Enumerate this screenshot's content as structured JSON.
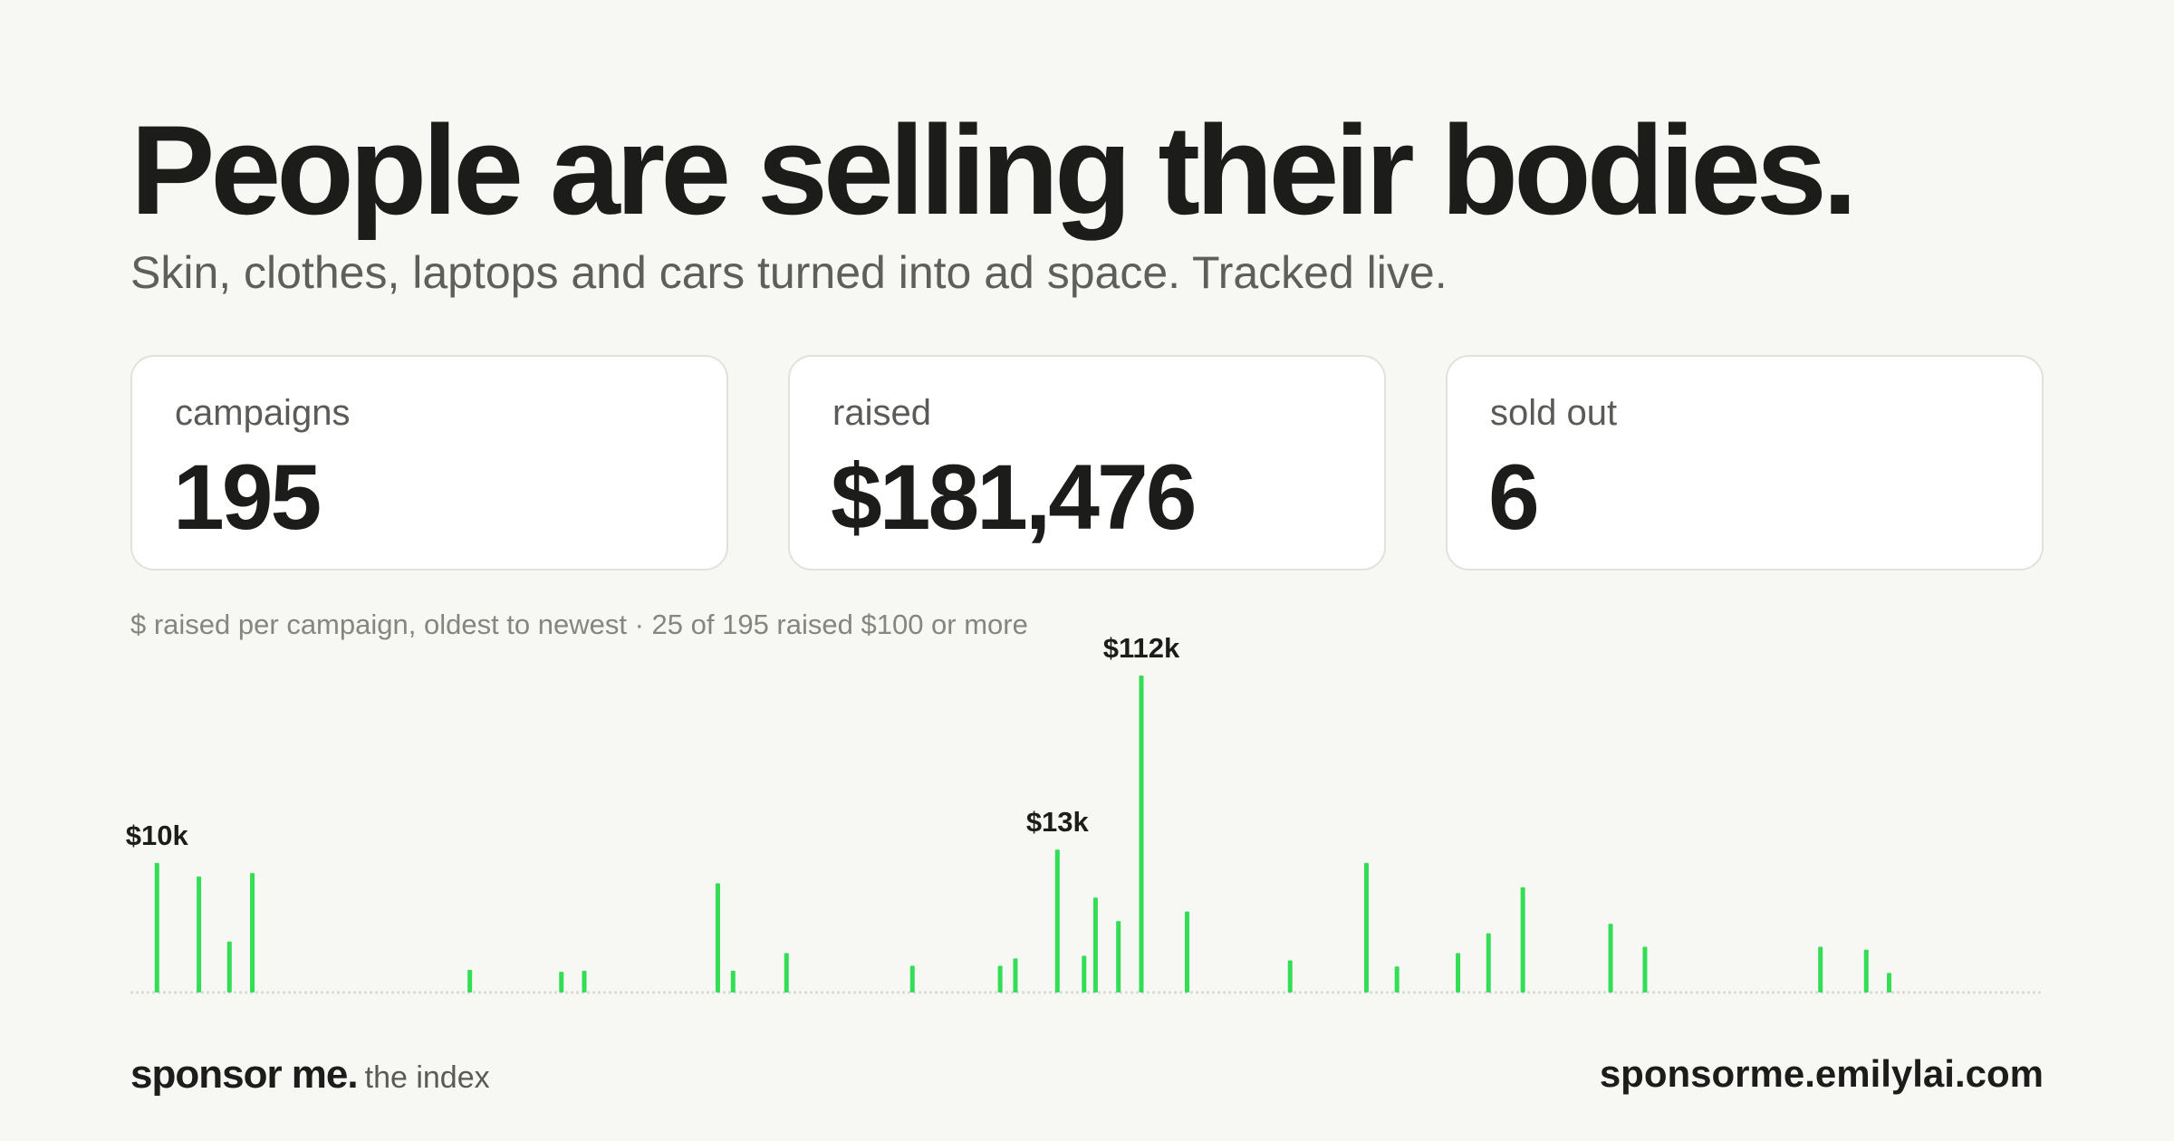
{
  "headline": "People are selling their bodies.",
  "subheadline": "Skin, clothes, laptops and cars turned into ad space. Tracked live.",
  "stats": [
    {
      "label": "campaigns",
      "value": "195"
    },
    {
      "label": "raised",
      "value": "$181,476"
    },
    {
      "label": "sold out",
      "value": "6"
    }
  ],
  "caption": "$ raised per campaign, oldest to newest · 25 of 195 raised $100 or more",
  "footer": {
    "brand": "sponsor me.",
    "tagline": "the index",
    "url": "sponsorme.emilylai.com"
  },
  "colors": {
    "bar": "#33dd55",
    "baseline": "#dcdcd6",
    "background": "#f7f7f3",
    "text": "#1c1c1a"
  },
  "chart_data": {
    "type": "bar",
    "title": "",
    "xlabel": "",
    "ylabel": "",
    "x_domain": [
      0,
      500
    ],
    "scale": "power 0.37 (visual)",
    "bars": [
      {
        "x": 6,
        "value": 10000,
        "label": "$10k"
      },
      {
        "x": 17,
        "value": 7400
      },
      {
        "x": 25,
        "value": 800
      },
      {
        "x": 31,
        "value": 8000
      },
      {
        "x": 88,
        "value": 90
      },
      {
        "x": 112,
        "value": 70
      },
      {
        "x": 118,
        "value": 80
      },
      {
        "x": 153,
        "value": 6300
      },
      {
        "x": 157,
        "value": 80
      },
      {
        "x": 171,
        "value": 400
      },
      {
        "x": 204,
        "value": 140
      },
      {
        "x": 227,
        "value": 140
      },
      {
        "x": 231,
        "value": 270
      },
      {
        "x": 242,
        "value": 13000,
        "label": "$13k"
      },
      {
        "x": 249,
        "value": 330
      },
      {
        "x": 252,
        "value": 4300
      },
      {
        "x": 258,
        "value": 2000
      },
      {
        "x": 264,
        "value": 112000,
        "label": "$112k"
      },
      {
        "x": 276,
        "value": 2800
      },
      {
        "x": 303,
        "value": 230
      },
      {
        "x": 323,
        "value": 10000
      },
      {
        "x": 331,
        "value": 130
      },
      {
        "x": 347,
        "value": 400
      },
      {
        "x": 355,
        "value": 1200
      },
      {
        "x": 364,
        "value": 5700
      },
      {
        "x": 387,
        "value": 1800
      },
      {
        "x": 396,
        "value": 600
      },
      {
        "x": 442,
        "value": 600
      },
      {
        "x": 454,
        "value": 500
      },
      {
        "x": 460,
        "value": 60
      }
    ]
  }
}
